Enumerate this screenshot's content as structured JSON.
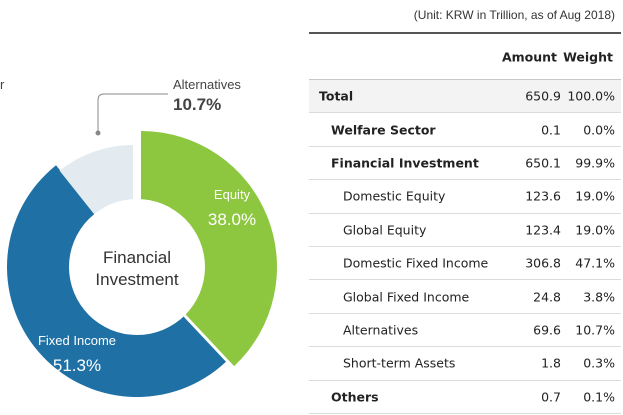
{
  "unit_note": "(Unit: KRW in Trillion, as of Aug 2018)",
  "colors": {
    "equity": "#8dc63f",
    "fixed_income": "#1f70a5",
    "alternatives": "#e4ebf0",
    "callout": "#888888"
  },
  "chart_data": {
    "type": "pie",
    "center_label": [
      "Financial",
      "Investment"
    ],
    "legend": "none",
    "slices": [
      {
        "label": "Equity",
        "value": 38.0,
        "display": "38.0%"
      },
      {
        "label": "Fixed Income",
        "value": 51.3,
        "display": "51.3%"
      },
      {
        "label": "Alternatives",
        "value": 10.7,
        "display": "10.7%"
      }
    ],
    "cut_off_label": "r"
  },
  "table": {
    "headers": {
      "amount": "Amount",
      "weight": "Weight"
    },
    "rows": [
      {
        "label": "Total",
        "amount": "650.9",
        "weight": "100.0%",
        "level": 0
      },
      {
        "label": "Welfare Sector",
        "amount": "0.1",
        "weight": "0.0%",
        "level": 1
      },
      {
        "label": "Financial Investment",
        "amount": "650.1",
        "weight": "99.9%",
        "level": 1
      },
      {
        "label": "Domestic Equity",
        "amount": "123.6",
        "weight": "19.0%",
        "level": 2
      },
      {
        "label": "Global Equity",
        "amount": "123.4",
        "weight": "19.0%",
        "level": 2
      },
      {
        "label": "Domestic Fixed Income",
        "amount": "306.8",
        "weight": "47.1%",
        "level": 2
      },
      {
        "label": "Global Fixed Income",
        "amount": "24.8",
        "weight": "3.8%",
        "level": 2
      },
      {
        "label": "Alternatives",
        "amount": "69.6",
        "weight": "10.7%",
        "level": 2
      },
      {
        "label": "Short-term Assets",
        "amount": "1.8",
        "weight": "0.3%",
        "level": 2
      },
      {
        "label": "Others",
        "amount": "0.7",
        "weight": "0.1%",
        "level": 1
      }
    ]
  }
}
